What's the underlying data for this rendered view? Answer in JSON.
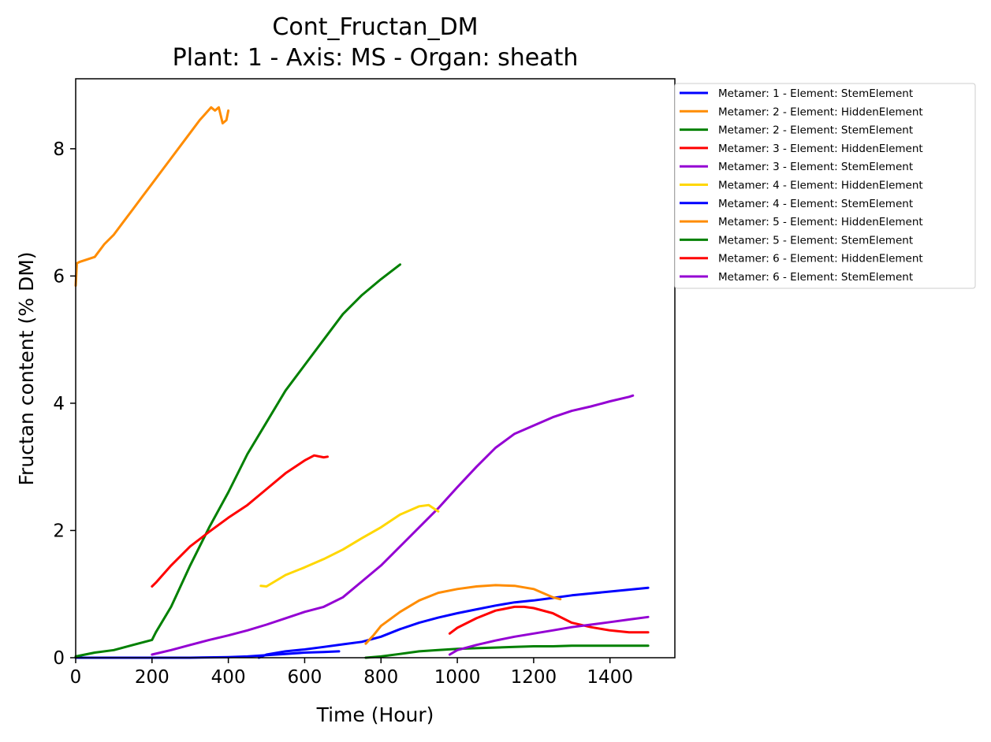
{
  "chart_data": {
    "type": "line",
    "title": "Cont_Fructan_DM",
    "subtitle": "Plant: 1 - Axis: MS - Organ: sheath",
    "xlabel": "Time (Hour)",
    "ylabel": "Fructan content (% DM)",
    "xlim": [
      0,
      1570
    ],
    "ylim": [
      0,
      9.1
    ],
    "xticks": [
      0,
      200,
      400,
      600,
      800,
      1000,
      1200,
      1400
    ],
    "yticks": [
      0,
      2,
      4,
      6,
      8
    ],
    "grid": false,
    "legend_position": "outside-right",
    "series": [
      {
        "name": "Metamer: 1 - Element: StemElement",
        "color": "#0000ff",
        "x": [
          0,
          100,
          200,
          300,
          400,
          450,
          500,
          550,
          600,
          650,
          690
        ],
        "y": [
          0.0,
          0.0,
          0.0,
          0.0,
          0.01,
          0.02,
          0.04,
          0.06,
          0.08,
          0.09,
          0.1
        ]
      },
      {
        "name": "Metamer: 2 - Element: HiddenElement",
        "color": "#ff8c00",
        "x": [
          0,
          3,
          10,
          25,
          50,
          75,
          100,
          125,
          150,
          175,
          200,
          225,
          250,
          275,
          300,
          325,
          340,
          355,
          365,
          375,
          385,
          395,
          400
        ],
        "y": [
          5.85,
          6.2,
          6.22,
          6.25,
          6.3,
          6.5,
          6.65,
          6.85,
          7.05,
          7.25,
          7.45,
          7.65,
          7.85,
          8.05,
          8.25,
          8.45,
          8.55,
          8.65,
          8.6,
          8.65,
          8.4,
          8.45,
          8.6
        ]
      },
      {
        "name": "Metamer: 2 - Element: StemElement",
        "color": "#008000",
        "x": [
          0,
          50,
          100,
          150,
          200,
          210,
          250,
          300,
          350,
          400,
          450,
          500,
          550,
          600,
          650,
          700,
          750,
          800,
          850
        ],
        "y": [
          0.02,
          0.08,
          0.12,
          0.2,
          0.28,
          0.4,
          0.8,
          1.45,
          2.05,
          2.6,
          3.2,
          3.7,
          4.2,
          4.6,
          5.0,
          5.4,
          5.7,
          5.95,
          6.18
        ]
      },
      {
        "name": "Metamer: 3 - Element: HiddenElement",
        "color": "#ff0000",
        "x": [
          200,
          210,
          250,
          300,
          350,
          400,
          450,
          500,
          550,
          600,
          625,
          650,
          660
        ],
        "y": [
          1.12,
          1.18,
          1.45,
          1.75,
          1.98,
          2.2,
          2.4,
          2.65,
          2.9,
          3.1,
          3.18,
          3.15,
          3.16
        ]
      },
      {
        "name": "Metamer: 3 - Element: StemElement",
        "color": "#9400d3",
        "x": [
          200,
          250,
          300,
          350,
          400,
          450,
          500,
          550,
          600,
          650,
          700,
          750,
          800,
          850,
          900,
          950,
          1000,
          1050,
          1100,
          1150,
          1200,
          1250,
          1300,
          1350,
          1400,
          1450,
          1460
        ],
        "y": [
          0.05,
          0.12,
          0.2,
          0.28,
          0.35,
          0.43,
          0.52,
          0.62,
          0.72,
          0.8,
          0.95,
          1.2,
          1.45,
          1.75,
          2.05,
          2.35,
          2.68,
          3.0,
          3.3,
          3.52,
          3.65,
          3.78,
          3.88,
          3.95,
          4.03,
          4.1,
          4.12
        ]
      },
      {
        "name": "Metamer: 4 - Element: HiddenElement",
        "color": "#ffd700",
        "x": [
          485,
          500,
          550,
          600,
          650,
          700,
          750,
          800,
          850,
          900,
          925,
          950
        ],
        "y": [
          1.13,
          1.12,
          1.3,
          1.42,
          1.55,
          1.7,
          1.88,
          2.05,
          2.25,
          2.38,
          2.4,
          2.3
        ]
      },
      {
        "name": "Metamer: 4 - Element: StemElement",
        "color": "#0000ff",
        "x": [
          480,
          500,
          550,
          600,
          650,
          700,
          750,
          800,
          850,
          900,
          950,
          1000,
          1050,
          1100,
          1150,
          1200,
          1250,
          1300,
          1350,
          1400,
          1450,
          1500
        ],
        "y": [
          0.0,
          0.05,
          0.1,
          0.13,
          0.17,
          0.21,
          0.25,
          0.33,
          0.45,
          0.55,
          0.63,
          0.7,
          0.76,
          0.82,
          0.87,
          0.9,
          0.94,
          0.98,
          1.01,
          1.04,
          1.07,
          1.1
        ]
      },
      {
        "name": "Metamer: 5 - Element: HiddenElement",
        "color": "#ff8c00",
        "x": [
          760,
          780,
          800,
          850,
          900,
          950,
          1000,
          1050,
          1100,
          1150,
          1200,
          1250,
          1270
        ],
        "y": [
          0.22,
          0.35,
          0.5,
          0.72,
          0.9,
          1.02,
          1.08,
          1.12,
          1.14,
          1.13,
          1.08,
          0.95,
          0.92
        ]
      },
      {
        "name": "Metamer: 5 - Element: StemElement",
        "color": "#008000",
        "x": [
          760,
          800,
          850,
          900,
          950,
          1000,
          1050,
          1100,
          1150,
          1200,
          1250,
          1300,
          1350,
          1400,
          1450,
          1500
        ],
        "y": [
          0.0,
          0.02,
          0.06,
          0.1,
          0.12,
          0.14,
          0.15,
          0.16,
          0.17,
          0.18,
          0.18,
          0.19,
          0.19,
          0.19,
          0.19,
          0.19
        ]
      },
      {
        "name": "Metamer: 6 - Element: HiddenElement",
        "color": "#ff0000",
        "x": [
          980,
          1000,
          1050,
          1100,
          1150,
          1175,
          1200,
          1250,
          1300,
          1350,
          1400,
          1450,
          1500
        ],
        "y": [
          0.38,
          0.47,
          0.62,
          0.74,
          0.8,
          0.8,
          0.78,
          0.7,
          0.55,
          0.48,
          0.43,
          0.4,
          0.4
        ]
      },
      {
        "name": "Metamer: 6 - Element: StemElement",
        "color": "#9400d3",
        "x": [
          980,
          1000,
          1050,
          1100,
          1150,
          1200,
          1250,
          1300,
          1350,
          1400,
          1450,
          1500
        ],
        "y": [
          0.05,
          0.12,
          0.2,
          0.27,
          0.33,
          0.38,
          0.43,
          0.48,
          0.52,
          0.56,
          0.6,
          0.64
        ]
      }
    ]
  }
}
